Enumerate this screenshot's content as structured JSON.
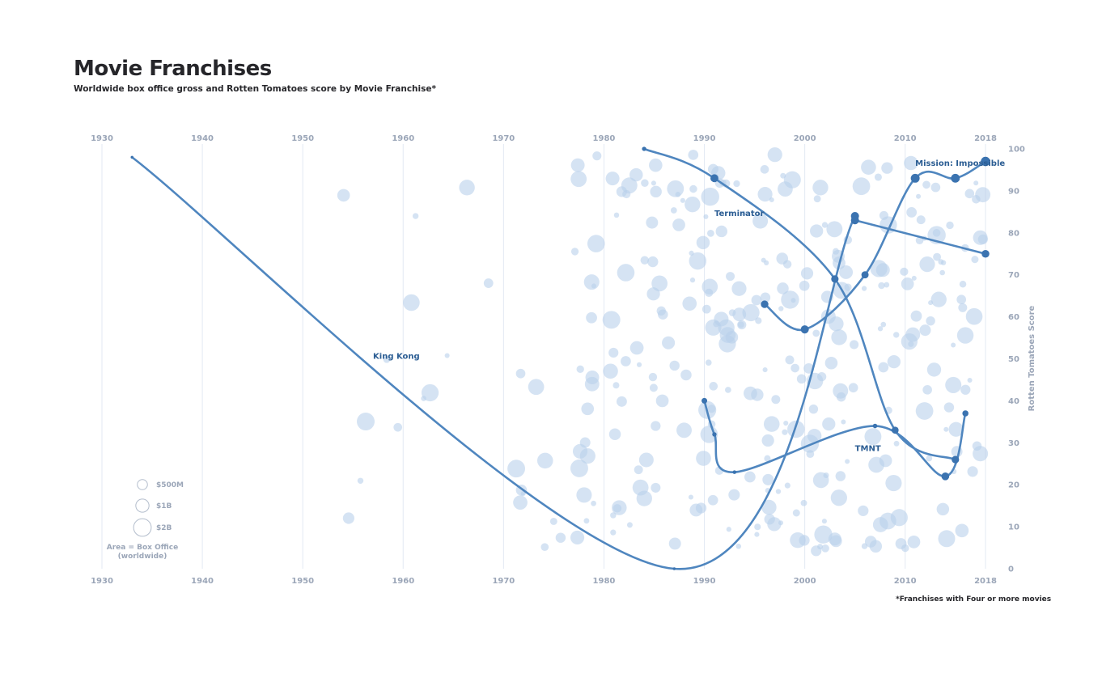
{
  "header": {
    "title": "Movie Franchises",
    "subtitle": "Worldwide box office gross and Rotten Tomatoes score by Movie Franchise*"
  },
  "footnote": "*Franchises with Four or more movies",
  "colors": {
    "line": "#4f86bf",
    "point": "#3b73b0",
    "bubble": "#b9d1eb",
    "grid": "#e3e9f3",
    "label": "#2b5d93",
    "tick": "#9ba6b8"
  },
  "chart_data": {
    "type": "scatter",
    "xlim": [
      1930,
      2018
    ],
    "ylim": [
      0,
      100
    ],
    "x_ticks": [
      1930,
      1940,
      1950,
      1960,
      1970,
      1980,
      1990,
      2000,
      2010,
      2018
    ],
    "y_ticks": [
      0,
      10,
      20,
      30,
      40,
      50,
      60,
      70,
      80,
      90,
      100
    ],
    "ylabel": "Rotten Tomatoes Score",
    "grid": true,
    "size_encoding": "Area = Box Office (worldwide)",
    "size_legend": [
      {
        "label": "$500M",
        "value_musd": 500
      },
      {
        "label": "$1B",
        "value_musd": 1000
      },
      {
        "label": "$2B",
        "value_musd": 2000
      }
    ],
    "series": [
      {
        "name": "King Kong",
        "points": [
          {
            "x": 1933,
            "y": 98,
            "gross_musd": 10
          },
          {
            "x": 1987,
            "y": 0,
            "gross_musd": 10
          },
          {
            "x": 2005,
            "y": 84,
            "gross_musd": 550
          }
        ]
      },
      {
        "name": "Terminator",
        "points": [
          {
            "x": 1984,
            "y": 100,
            "gross_musd": 80
          },
          {
            "x": 1991,
            "y": 93,
            "gross_musd": 520
          },
          {
            "x": 2003,
            "y": 69,
            "gross_musd": 430
          },
          {
            "x": 2009,
            "y": 33,
            "gross_musd": 370
          },
          {
            "x": 2015,
            "y": 26,
            "gross_musd": 440
          }
        ]
      },
      {
        "name": "Mission: Impossible",
        "points": [
          {
            "x": 1996,
            "y": 63,
            "gross_musd": 460
          },
          {
            "x": 2000,
            "y": 57,
            "gross_musd": 550
          },
          {
            "x": 2006,
            "y": 70,
            "gross_musd": 400
          },
          {
            "x": 2011,
            "y": 93,
            "gross_musd": 690
          },
          {
            "x": 2015,
            "y": 93,
            "gross_musd": 680
          },
          {
            "x": 2018,
            "y": 97,
            "gross_musd": 790
          }
        ]
      },
      {
        "name": "TMNT",
        "points": [
          {
            "x": 1990,
            "y": 40,
            "gross_musd": 200
          },
          {
            "x": 1991,
            "y": 32,
            "gross_musd": 80
          },
          {
            "x": 1993,
            "y": 23,
            "gross_musd": 40
          },
          {
            "x": 2007,
            "y": 34,
            "gross_musd": 95
          },
          {
            "x": 2014,
            "y": 22,
            "gross_musd": 490
          },
          {
            "x": 2016,
            "y": 37,
            "gross_musd": 245
          }
        ]
      },
      {
        "name": "",
        "points": [
          {
            "x": 2005,
            "y": 83,
            "gross_musd": 550
          },
          {
            "x": 2018,
            "y": 75,
            "gross_musd": 480
          }
        ]
      }
    ],
    "label_positions": [
      {
        "name": "King Kong",
        "x": 1957,
        "y": 50
      },
      {
        "name": "Terminator",
        "x": 1991,
        "y": 84
      },
      {
        "name": "Mission: Impossible",
        "x": 2011,
        "y": 96
      },
      {
        "name": "TMNT",
        "x": 2005,
        "y": 28
      }
    ]
  }
}
